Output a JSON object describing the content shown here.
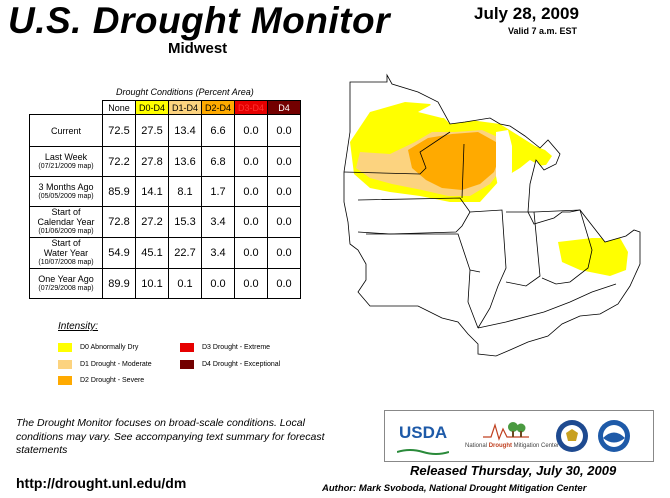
{
  "header": {
    "title": "U.S. Drought Monitor",
    "region": "Midwest",
    "date": "July 28, 2009",
    "valid": "Valid 7 a.m. EST"
  },
  "table": {
    "caption": "Drought Conditions (Percent Area)",
    "columns": [
      "None",
      "D0-D4",
      "D1-D4",
      "D2-D4",
      "D3-D4",
      "D4"
    ],
    "column_colors": [
      "#ffffff",
      "#ffff00",
      "#fcd37f",
      "#ffaa00",
      "#e60000",
      "#730000"
    ],
    "column_text_colors": [
      "#000000",
      "#000000",
      "#000000",
      "#000000",
      "#ff3333",
      "#ffffff"
    ],
    "rows": [
      {
        "label": "Current",
        "sub": "",
        "values": [
          "72.5",
          "27.5",
          "13.4",
          "6.6",
          "0.0",
          "0.0"
        ]
      },
      {
        "label": "Last Week",
        "sub": "(07/21/2009 map)",
        "values": [
          "72.2",
          "27.8",
          "13.6",
          "6.8",
          "0.0",
          "0.0"
        ]
      },
      {
        "label": "3 Months Ago",
        "sub": "(05/05/2009 map)",
        "values": [
          "85.9",
          "14.1",
          "8.1",
          "1.7",
          "0.0",
          "0.0"
        ]
      },
      {
        "label": "Start of\nCalendar Year",
        "sub": "(01/06/2009 map)",
        "values": [
          "72.8",
          "27.2",
          "15.3",
          "3.4",
          "0.0",
          "0.0"
        ]
      },
      {
        "label": "Start of\nWater Year",
        "sub": "(10/07/2008 map)",
        "values": [
          "54.9",
          "45.1",
          "22.7",
          "3.4",
          "0.0",
          "0.0"
        ]
      },
      {
        "label": "One Year Ago",
        "sub": "(07/29/2008 map)",
        "values": [
          "89.9",
          "10.1",
          "0.1",
          "0.0",
          "0.0",
          "0.0"
        ]
      }
    ]
  },
  "legend": {
    "title": "Intensity:",
    "items": [
      {
        "label": "D0 Abnormally Dry",
        "color": "#ffff00"
      },
      {
        "label": "D1 Drought - Moderate",
        "color": "#fcd37f"
      },
      {
        "label": "D2 Drought - Severe",
        "color": "#ffaa00"
      },
      {
        "label": "D3 Drought - Extreme",
        "color": "#e60000"
      },
      {
        "label": "D4 Drought - Exceptional",
        "color": "#730000"
      }
    ]
  },
  "footnote": "The Drought Monitor focuses on broad-scale conditions. Local conditions may vary. See accompanying text summary for forecast statements",
  "url": "http://drought.unl.edu/dm",
  "released": "Released Thursday, July 30, 2009",
  "author": "Author: Mark Svoboda, National Drought Mitigation Center",
  "logos": {
    "usda": "USDA",
    "ndmc_prefix": "National ",
    "ndmc_drought": "Drought",
    "ndmc_suffix": " Mitigation Center"
  }
}
